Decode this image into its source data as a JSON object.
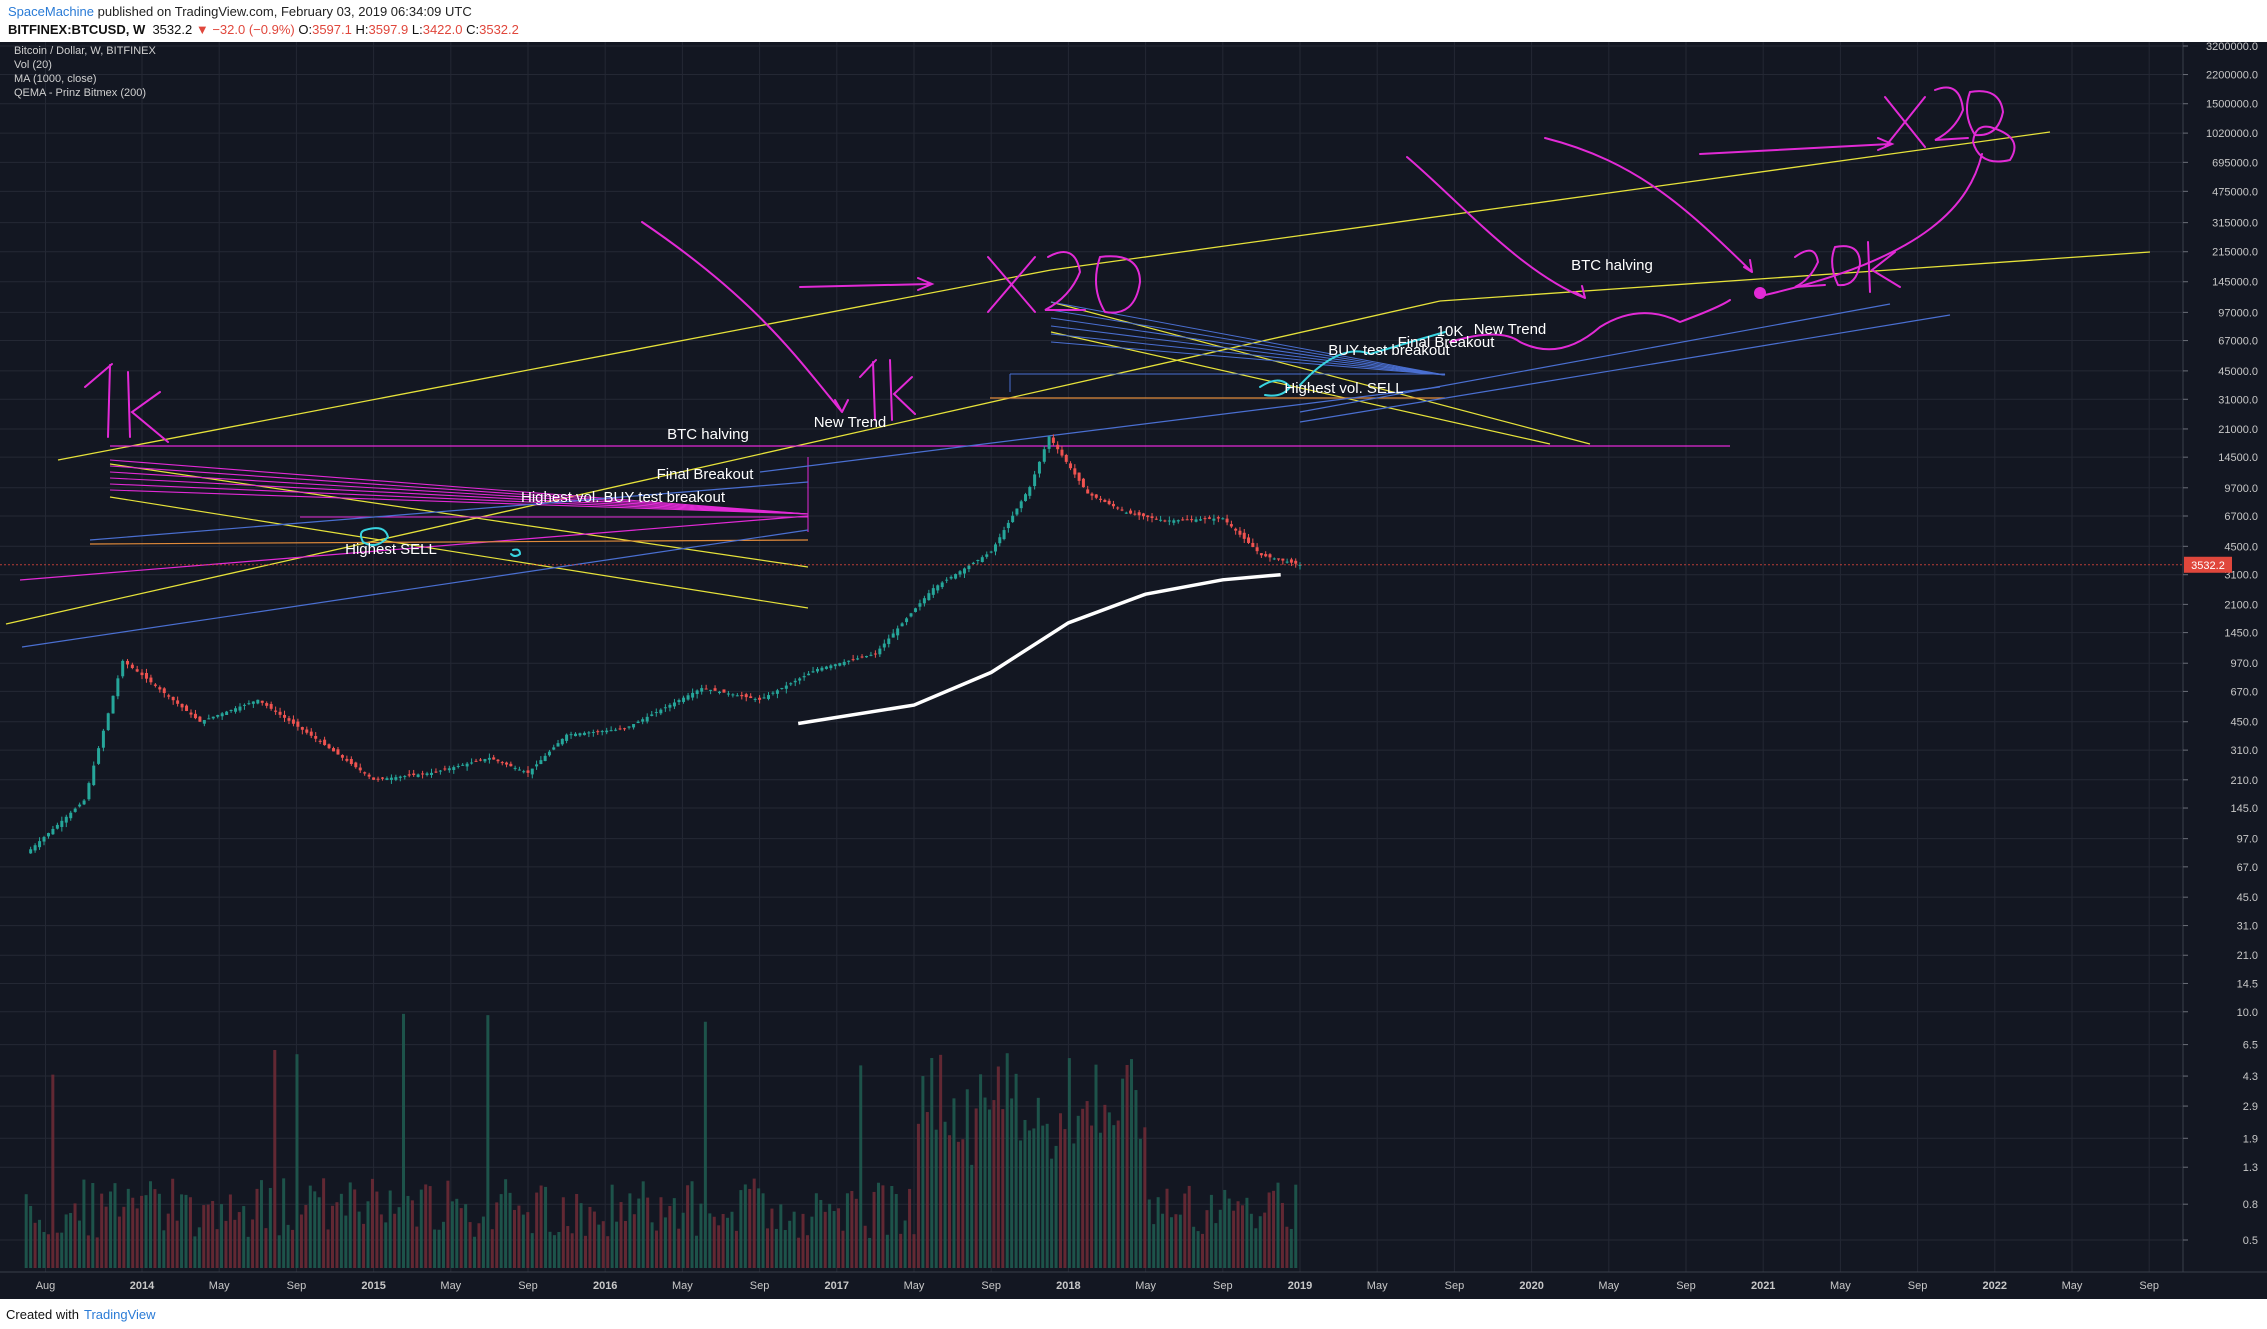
{
  "header": {
    "author": "SpaceMachine",
    "published": "published on TradingView.com, February 03, 2019 06:34:09 UTC",
    "symbol": "BITFINEX:BTCUSD, W",
    "price": "3532.2",
    "change_arrow": "▼",
    "change": "−32.0 (−0.9%)",
    "o_label": "O:",
    "o_value": "3597.1",
    "h_label": "H:",
    "h_value": "3597.9",
    "l_label": "L:",
    "l_value": "3422.0",
    "c_label": "C:",
    "c_value": "3532.2"
  },
  "legend": {
    "title": "Bitcoin / Dollar, W, BITFINEX",
    "vol": "Vol (20)",
    "ma": "MA (1000, close)",
    "qema": "QEMA - Prinz Bitmex (200)"
  },
  "footer": {
    "created": "Created with",
    "brand": "TradingView"
  },
  "colors": {
    "background": "#131722",
    "grid": "#242834",
    "up": "#26a69a",
    "down": "#ef5350",
    "yellow": "#e6e23a",
    "magenta": "#e22ad6",
    "blue": "#4a6fd1",
    "cyan": "#39d4e0",
    "white": "#ffffff",
    "price_tag": "#e0473c"
  },
  "chart_data": {
    "type": "candlestick",
    "title": "Bitcoin / Dollar, W, BITFINEX",
    "y_scale": "log",
    "y_ticks": [
      "3200000.0",
      "2200000.0",
      "1500000.0",
      "1020000.0",
      "695000.0",
      "475000.0",
      "315000.0",
      "215000.0",
      "145000.0",
      "97000.0",
      "67000.0",
      "45000.0",
      "31000.0",
      "21000.0",
      "14500.0",
      "9700.0",
      "6700.0",
      "4500.0",
      "3100.0",
      "2100.0",
      "1450.0",
      "970.0",
      "670.0",
      "450.0",
      "310.0",
      "210.0",
      "145.0",
      "97.0",
      "67.0",
      "45.0",
      "31.0",
      "21.0",
      "14.5",
      "10.0",
      "6.5",
      "4.3",
      "2.9",
      "1.9",
      "1.3",
      "0.8",
      "0.5"
    ],
    "x_ticks": [
      "Aug",
      "2014",
      "May",
      "Sep",
      "2015",
      "May",
      "Sep",
      "2016",
      "May",
      "Sep",
      "2017",
      "May",
      "Sep",
      "2018",
      "May",
      "Sep",
      "2019",
      "May",
      "Sep",
      "2020",
      "May",
      "Sep",
      "2021",
      "May",
      "Sep",
      "2022",
      "May",
      "Sep"
    ],
    "last_price": 3532.2,
    "price_path": [
      {
        "date": "2013-07",
        "price": 80
      },
      {
        "date": "2013-10",
        "price": 160
      },
      {
        "date": "2013-11",
        "price": 400
      },
      {
        "date": "2013-12",
        "price": 1000
      },
      {
        "date": "2014-01",
        "price": 830
      },
      {
        "date": "2014-04",
        "price": 450
      },
      {
        "date": "2014-07",
        "price": 600
      },
      {
        "date": "2014-10",
        "price": 360
      },
      {
        "date": "2015-01",
        "price": 210
      },
      {
        "date": "2015-04",
        "price": 230
      },
      {
        "date": "2015-07",
        "price": 280
      },
      {
        "date": "2015-09",
        "price": 230
      },
      {
        "date": "2015-11",
        "price": 380
      },
      {
        "date": "2016-02",
        "price": 410
      },
      {
        "date": "2016-06",
        "price": 700
      },
      {
        "date": "2016-09",
        "price": 600
      },
      {
        "date": "2016-12",
        "price": 900
      },
      {
        "date": "2017-03",
        "price": 1100
      },
      {
        "date": "2017-06",
        "price": 2600
      },
      {
        "date": "2017-09",
        "price": 4200
      },
      {
        "date": "2017-11",
        "price": 9800
      },
      {
        "date": "2017-12",
        "price": 19000
      },
      {
        "date": "2018-02",
        "price": 9000
      },
      {
        "date": "2018-04",
        "price": 7000
      },
      {
        "date": "2018-06",
        "price": 6300
      },
      {
        "date": "2018-09",
        "price": 6500
      },
      {
        "date": "2018-11",
        "price": 4000
      },
      {
        "date": "2019-01",
        "price": 3532.2
      }
    ],
    "ma_1000": [
      {
        "date": "2016-11",
        "price": 440
      },
      {
        "date": "2017-05",
        "price": 560
      },
      {
        "date": "2017-09",
        "price": 860
      },
      {
        "date": "2018-01",
        "price": 1650
      },
      {
        "date": "2018-05",
        "price": 2400
      },
      {
        "date": "2018-09",
        "price": 2900
      },
      {
        "date": "2018-12",
        "price": 3100
      }
    ],
    "annotations": [
      "1K",
      "x20",
      "1K",
      "x20",
      "20K",
      "10K",
      "Highest SELL",
      "Highest vol. BUY test breakout",
      "Final Breakout",
      "BTC halving",
      "New Trend",
      "BUY test breakout",
      "Final Breakout",
      "New Trend",
      "Highest vol. SELL",
      "BTC halving"
    ]
  }
}
